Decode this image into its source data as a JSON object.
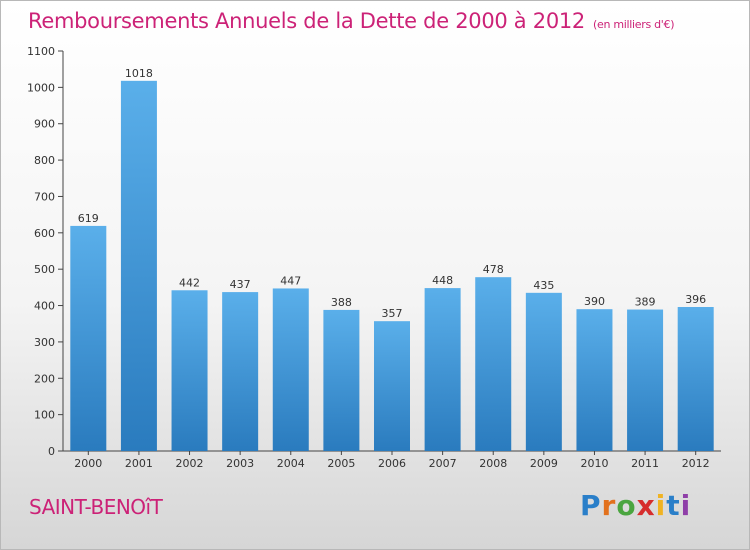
{
  "title": "Remboursements Annuels de la Dette de 2000 à 2012",
  "unit": "(en milliers d'€)",
  "commune": "SAINT-BENOîT",
  "brand": [
    "P",
    "r",
    "o",
    "x",
    "i",
    "t",
    "i"
  ],
  "colors": {
    "title": "#cc2277",
    "bar_top": "#5aafea",
    "bar_bottom": "#2a7bbe"
  },
  "chart_data": {
    "type": "bar",
    "title": "Remboursements Annuels de la Dette de 2000 à 2012",
    "categories": [
      "2000",
      "2001",
      "2002",
      "2003",
      "2004",
      "2005",
      "2006",
      "2007",
      "2008",
      "2009",
      "2010",
      "2011",
      "2012"
    ],
    "values": [
      619,
      1018,
      442,
      437,
      447,
      388,
      357,
      448,
      478,
      435,
      390,
      389,
      396
    ],
    "xlabel": "",
    "ylabel": "",
    "ylim": [
      0,
      1100
    ],
    "yticks": [
      0,
      100,
      200,
      300,
      400,
      500,
      600,
      700,
      800,
      900,
      1000,
      1100
    ],
    "grid": false,
    "data_labels": true
  }
}
